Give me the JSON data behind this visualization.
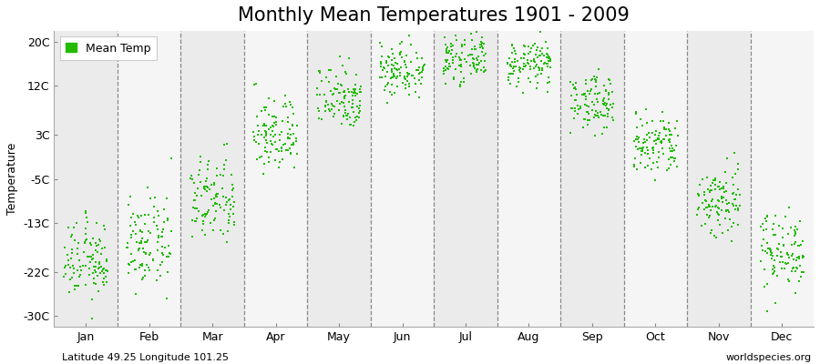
{
  "title": "Monthly Mean Temperatures 1901 - 2009",
  "ylabel": "Temperature",
  "xlabel_months": [
    "Jan",
    "Feb",
    "Mar",
    "Apr",
    "May",
    "Jun",
    "Jul",
    "Aug",
    "Sep",
    "Oct",
    "Nov",
    "Dec"
  ],
  "yticks": [
    -30,
    -22,
    -13,
    -5,
    3,
    12,
    20
  ],
  "ytick_labels": [
    "-30C",
    "-22C",
    "-13C",
    "-5C",
    "3C",
    "12C",
    "20C"
  ],
  "ylim": [
    -32,
    22
  ],
  "dot_color": "#22BB00",
  "dot_size": 3,
  "legend_label": "Mean Temp",
  "subtitle_left": "Latitude 49.25 Longitude 101.25",
  "subtitle_right": "worldspecies.org",
  "bg_color": "#ffffff",
  "band_colors": [
    "#ebebeb",
    "#f5f5f5"
  ],
  "monthly_means": [
    -20,
    -17,
    -9,
    3,
    10,
    15,
    17,
    16,
    9,
    1,
    -9,
    -18
  ],
  "monthly_stds": [
    3.5,
    4.0,
    4.0,
    3.5,
    3.0,
    2.5,
    2.0,
    2.0,
    2.5,
    3.0,
    3.5,
    3.5
  ],
  "n_years": 109,
  "title_fontsize": 15,
  "axis_label_fontsize": 9,
  "tick_fontsize": 9
}
